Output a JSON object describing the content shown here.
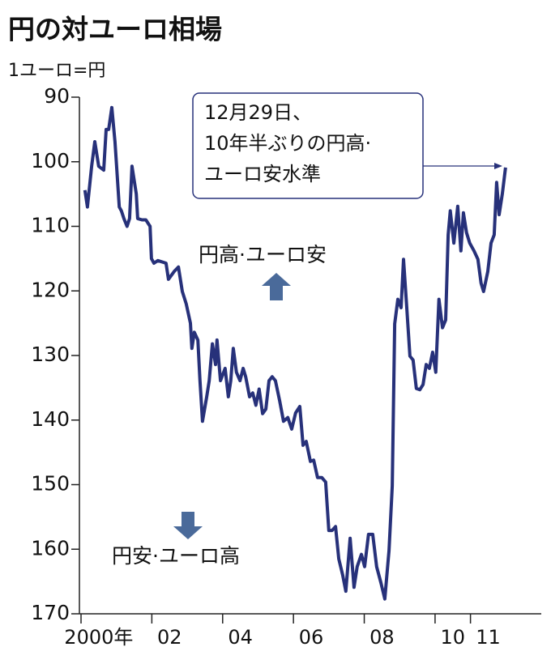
{
  "chart_data": {
    "type": "line",
    "title": "円の対ユーロ相場",
    "y_label": "1ユーロ=円",
    "annotations": {
      "callout": [
        "12月29日、",
        "10年半ぶりの円高·",
        "ユーロ安水準"
      ],
      "up": "円高·ユーロ安",
      "down": "円安·ユーロ高"
    },
    "y_inverted": true,
    "ylim": [
      90,
      170
    ],
    "yticks": [
      90,
      100,
      110,
      120,
      130,
      140,
      150,
      160,
      170
    ],
    "xlim": [
      2000,
      2013
    ],
    "xticks": [
      {
        "value": 2000,
        "label": "2000年"
      },
      {
        "value": 2002,
        "label": "02"
      },
      {
        "value": 2004,
        "label": "04"
      },
      {
        "value": 2006,
        "label": "06"
      },
      {
        "value": 2008,
        "label": "08"
      },
      {
        "value": 2010,
        "label": "10"
      },
      {
        "value": 2011,
        "label": "11"
      }
    ],
    "color": "#27317a",
    "x": [
      2000.11,
      2000.18,
      2000.3,
      2000.39,
      2000.5,
      2000.64,
      2000.71,
      2000.78,
      2000.87,
      2000.96,
      2001.08,
      2001.14,
      2001.21,
      2001.3,
      2001.37,
      2001.44,
      2001.56,
      2001.6,
      2001.72,
      2001.83,
      2001.95,
      2001.99,
      2002.06,
      2002.17,
      2002.4,
      2002.47,
      2002.63,
      2002.75,
      2002.86,
      2002.97,
      2003.09,
      2003.13,
      2003.2,
      2003.3,
      2003.36,
      2003.43,
      2003.55,
      2003.62,
      2003.71,
      2003.8,
      2003.84,
      2003.94,
      2004.07,
      2004.16,
      2004.23,
      2004.3,
      2004.39,
      2004.49,
      2004.58,
      2004.65,
      2004.76,
      2004.85,
      2004.94,
      2005.03,
      2005.13,
      2005.22,
      2005.31,
      2005.4,
      2005.49,
      2005.61,
      2005.72,
      2005.84,
      2005.95,
      2006.06,
      2006.18,
      2006.27,
      2006.36,
      2006.48,
      2006.57,
      2006.68,
      2006.8,
      2006.91,
      2007.0,
      2007.09,
      2007.19,
      2007.28,
      2007.39,
      2007.48,
      2007.6,
      2007.71,
      2007.8,
      2007.92,
      2008.01,
      2008.12,
      2008.24,
      2008.35,
      2008.47,
      2008.58,
      2008.7,
      2008.79,
      2008.86,
      2008.95,
      2009.04,
      2009.11,
      2009.2,
      2009.29,
      2009.38,
      2009.47,
      2009.57,
      2009.66,
      2009.75,
      2009.84,
      2009.93,
      2010.02,
      2010.11,
      2010.21,
      2010.3,
      2010.37,
      2010.43,
      2010.53,
      2010.64,
      2010.73,
      2010.8,
      2010.89,
      2010.98,
      2011.1,
      2011.21,
      2011.3,
      2011.37,
      2011.49,
      2011.58,
      2011.67,
      2011.74,
      2011.81,
      2011.9,
      2011.99
    ],
    "values": [
      104.4,
      107,
      100.7,
      96.9,
      100.7,
      101.3,
      95,
      95,
      91.6,
      96.9,
      107,
      107.6,
      108.8,
      110,
      108.8,
      100.7,
      105,
      108.8,
      109,
      109,
      110,
      115,
      115.7,
      115.3,
      115.7,
      118.2,
      117,
      116.3,
      120.1,
      122,
      125,
      128.9,
      126.4,
      127.6,
      133.9,
      140.2,
      136.4,
      133.9,
      128.2,
      131.4,
      127.6,
      133.9,
      132,
      136.4,
      133.9,
      128.9,
      132.6,
      133.9,
      132,
      133.3,
      136.4,
      135.8,
      137.7,
      135.2,
      139,
      138.3,
      133.9,
      133.3,
      133.9,
      137,
      140.2,
      139.6,
      141.4,
      138.9,
      137.9,
      143.9,
      143.3,
      146.4,
      146.2,
      148.9,
      148.9,
      149.6,
      157.1,
      157.1,
      156.5,
      161.5,
      164,
      166.5,
      158.3,
      165.9,
      162.7,
      160.8,
      162.7,
      157.7,
      157.7,
      162.7,
      165.2,
      167.7,
      160.2,
      150.2,
      125.1,
      121.3,
      122.6,
      115.1,
      122.6,
      130.1,
      130.7,
      135.1,
      135.3,
      134.5,
      131.4,
      132,
      129.5,
      132.6,
      121.3,
      125.7,
      124.5,
      111.3,
      107.6,
      112.6,
      106.9,
      113.8,
      107.9,
      111,
      112.6,
      113.8,
      115.1,
      118.8,
      120.1,
      117,
      112.6,
      111.3,
      103.2,
      108.2,
      105,
      100.9
    ]
  }
}
